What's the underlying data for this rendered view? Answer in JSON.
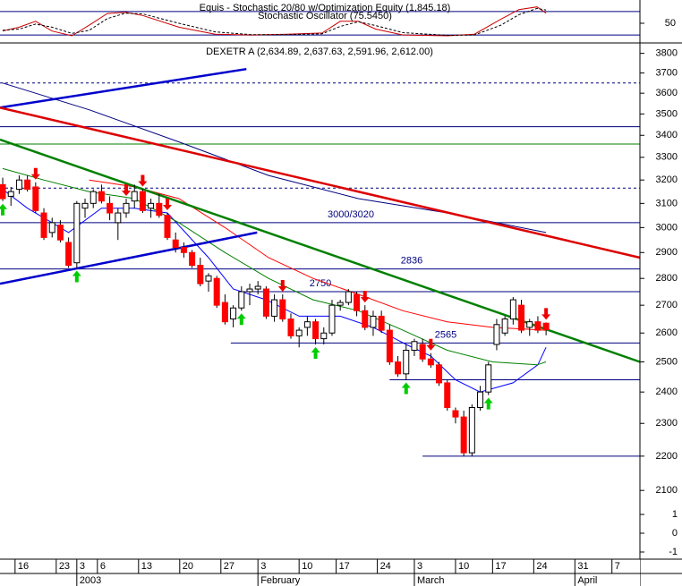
{
  "chart_data": [
    {
      "type": "line",
      "title": "Equis - Stochastic 20/80 w/Optimization Equity (1,845.18)",
      "subtitle": "Stochastic Oscillator (75.5450)",
      "xlim": [
        -0.33,
        77.4
      ],
      "ylim": [
        -5,
        105
      ],
      "yticks": [
        50
      ],
      "levels": [
        80,
        20
      ],
      "series": [
        {
          "color": "#cc0000",
          "x": [
            0,
            2,
            4,
            6,
            8.4,
            10.5,
            12.7,
            14.9,
            17,
            21.4,
            25.8,
            30.1,
            34.5,
            38.8,
            41,
            43.2,
            45.3,
            48.6,
            54,
            57.3,
            60.5,
            62.7,
            64.9,
            66
          ],
          "values": [
            30,
            40,
            55,
            30,
            18,
            45,
            75,
            78,
            70,
            40,
            22,
            20,
            22,
            25,
            55,
            55,
            35,
            20,
            18,
            22,
            60,
            85,
            92,
            76
          ]
        },
        {
          "color": "#000000",
          "dashed": true,
          "x": [
            0,
            2,
            4,
            6,
            8.4,
            10.5,
            12.7,
            14.9,
            17,
            21.4,
            25.8,
            30.1,
            34.5,
            38.8,
            41,
            43.2,
            45.3,
            48.6,
            54,
            57.3,
            60.5,
            62.7,
            64.9,
            66
          ],
          "values": [
            32,
            35,
            48,
            40,
            24,
            32,
            62,
            76,
            74,
            50,
            28,
            21,
            21,
            23,
            42,
            54,
            44,
            26,
            19,
            20,
            45,
            72,
            88,
            84
          ]
        }
      ]
    },
    {
      "type": "candlestick",
      "title": "DEXETR A (2,634.89, 2,637.63, 2,591.96, 2,612.00)",
      "log_scale": true,
      "xlim": [
        -0.33,
        77.4
      ],
      "ylim": [
        1913,
        3840
      ],
      "yticks": [
        2100,
        2200,
        2300,
        2400,
        2500,
        2600,
        2700,
        2800,
        2900,
        3000,
        3100,
        3200,
        3300,
        3400,
        3500,
        3600,
        3700,
        3800
      ],
      "extra_tick_labels": [
        "1",
        "0",
        "-1"
      ],
      "xticks": [
        {
          "value": 1.5,
          "label": "16"
        },
        {
          "value": 6.5,
          "label": "23"
        },
        {
          "value": 9,
          "label": "3"
        },
        {
          "value": 11.5,
          "label": "6"
        },
        {
          "value": 16.5,
          "label": "13"
        },
        {
          "value": 21.5,
          "label": "20"
        },
        {
          "value": 26.5,
          "label": "27"
        },
        {
          "value": 31,
          "label": "3"
        },
        {
          "value": 36,
          "label": "10"
        },
        {
          "value": 40.5,
          "label": "17"
        },
        {
          "value": 45.5,
          "label": "24"
        },
        {
          "value": 50,
          "label": "3"
        },
        {
          "value": 55,
          "label": "10"
        },
        {
          "value": 59.5,
          "label": "17"
        },
        {
          "value": 64.5,
          "label": "24"
        },
        {
          "value": 69.5,
          "label": "31"
        },
        {
          "value": 74,
          "label": "7"
        }
      ],
      "xmajor": [
        {
          "value": 9,
          "label": "2003"
        },
        {
          "value": 31,
          "label": "February"
        },
        {
          "value": 50,
          "label": "March"
        },
        {
          "value": 69.5,
          "label": "April"
        }
      ],
      "up_color": "#ffffff",
      "down_color": "#ff0000",
      "open": [
        3180,
        3130,
        3160,
        3200,
        3170,
        3060,
        2980,
        3010,
        2940,
        2860,
        3080,
        3100,
        3150,
        3100,
        3020,
        3060,
        3110,
        3150,
        3080,
        3100,
        3050,
        2950,
        2920,
        2900,
        2850,
        2790,
        2800,
        2710,
        2650,
        2690,
        2750,
        2760,
        2760,
        2660,
        2720,
        2650,
        2590,
        2620,
        2640,
        2580,
        2600,
        2700,
        2710,
        2740,
        2680,
        2620,
        2660,
        2610,
        2500,
        2460,
        2540,
        2560,
        2510,
        2490,
        2430,
        2340,
        2320,
        2210,
        2350,
        2400,
        2560,
        2600,
        2650,
        2700,
        2620,
        2640,
        2634.89
      ],
      "high": [
        3210,
        3170,
        3220,
        3220,
        3190,
        3080,
        3040,
        3030,
        2960,
        3110,
        3120,
        3160,
        3180,
        3130,
        3080,
        3120,
        3180,
        3160,
        3120,
        3140,
        3060,
        2980,
        2940,
        2910,
        2880,
        2820,
        2810,
        2740,
        2700,
        2770,
        2780,
        2790,
        2770,
        2740,
        2740,
        2670,
        2620,
        2660,
        2650,
        2620,
        2720,
        2720,
        2760,
        2750,
        2700,
        2680,
        2680,
        2630,
        2520,
        2560,
        2580,
        2580,
        2530,
        2500,
        2440,
        2350,
        2340,
        2360,
        2420,
        2500,
        2650,
        2660,
        2730,
        2720,
        2650,
        2660,
        2637.63
      ],
      "low": [
        3110,
        3090,
        3140,
        3150,
        3060,
        2950,
        2960,
        2940,
        2840,
        2840,
        3040,
        3080,
        3100,
        3030,
        2950,
        3040,
        3080,
        3060,
        3040,
        3040,
        2950,
        2900,
        2880,
        2840,
        2770,
        2750,
        2690,
        2630,
        2620,
        2680,
        2700,
        2740,
        2650,
        2640,
        2640,
        2580,
        2550,
        2590,
        2560,
        2560,
        2590,
        2680,
        2700,
        2660,
        2610,
        2590,
        2600,
        2490,
        2450,
        2440,
        2520,
        2500,
        2480,
        2420,
        2340,
        2300,
        2200,
        2200,
        2340,
        2390,
        2540,
        2590,
        2630,
        2600,
        2590,
        2600,
        2591.96
      ],
      "close": [
        3120,
        3150,
        3200,
        3160,
        3070,
        2960,
        3020,
        2950,
        2850,
        3100,
        3100,
        3150,
        3110,
        3060,
        3060,
        3100,
        3150,
        3070,
        3100,
        3050,
        2960,
        2920,
        2900,
        2850,
        2780,
        2810,
        2700,
        2640,
        2690,
        2750,
        2760,
        2770,
        2660,
        2720,
        2650,
        2590,
        2610,
        2640,
        2580,
        2600,
        2700,
        2710,
        2750,
        2680,
        2620,
        2660,
        2610,
        2500,
        2460,
        2540,
        2570,
        2510,
        2490,
        2430,
        2350,
        2320,
        2210,
        2350,
        2400,
        2490,
        2630,
        2650,
        2720,
        2610,
        2640,
        2610,
        2612
      ],
      "buy_signals": [
        0,
        9,
        29,
        38,
        49,
        59
      ],
      "sell_signals": [
        4,
        15,
        17,
        20,
        34,
        44,
        52,
        66
      ],
      "moving_averages": [
        {
          "color": "#0000ff",
          "x": [
            0,
            3,
            8,
            12,
            16,
            20,
            25,
            28,
            32,
            36,
            41,
            45,
            49,
            52,
            55,
            58,
            62,
            65,
            66
          ],
          "values": [
            3160,
            3080,
            2980,
            3080,
            3080,
            3060,
            2880,
            2760,
            2720,
            2660,
            2660,
            2620,
            2560,
            2520,
            2440,
            2400,
            2430,
            2490,
            2550
          ]
        },
        {
          "color": "#008000",
          "x": [
            0,
            5,
            10.5,
            16,
            21.4,
            27,
            32.3,
            37.7,
            43.2,
            48.6,
            54,
            59.5,
            64.9,
            66
          ],
          "values": [
            3250,
            3200,
            3150,
            3120,
            3020,
            2900,
            2800,
            2720,
            2680,
            2610,
            2540,
            2500,
            2490,
            2500
          ]
        },
        {
          "color": "#ff0000",
          "x": [
            10.5,
            16,
            21.4,
            27,
            32.3,
            37.7,
            43.2,
            48.6,
            54,
            59.5,
            66
          ],
          "values": [
            3200,
            3170,
            3120,
            3000,
            2880,
            2800,
            2740,
            2680,
            2640,
            2620,
            2610
          ]
        },
        {
          "color": "#000080",
          "x": [
            0,
            10.5,
            21.4,
            32.3,
            43.2,
            54,
            66
          ],
          "values": [
            3650,
            3520,
            3370,
            3220,
            3120,
            3060,
            2980
          ]
        }
      ],
      "trendlines": [
        {
          "color": "#0000cc",
          "x": [
            -0.33,
            29.6
          ],
          "values": [
            3530,
            3720
          ]
        },
        {
          "color": "#0000cc",
          "x": [
            -0.33,
            30.9
          ],
          "values": [
            2780,
            2980
          ]
        },
        {
          "color": "#dd0000",
          "x": [
            -0.33,
            77.4
          ],
          "values": [
            3530,
            2880
          ]
        },
        {
          "color": "#008000",
          "x": [
            -0.33,
            77.4
          ],
          "values": [
            3380,
            2500
          ]
        }
      ],
      "levels": [
        {
          "value": 3650,
          "color": "#000080",
          "dashed": true
        },
        {
          "value": 3440,
          "color": "#000080"
        },
        {
          "value": 3360,
          "color": "#008000"
        },
        {
          "value": 3165,
          "color": "#000080",
          "dashed": true
        },
        {
          "value": 3020,
          "label": "3000/3020",
          "color": "#000080"
        },
        {
          "value": 2836,
          "label": "2836",
          "color": "#000080"
        },
        {
          "value": 2750,
          "label": "2750",
          "color": "#000080",
          "from": 29
        },
        {
          "value": 2565,
          "label": "2565",
          "color": "#000080",
          "from": 27.7
        },
        {
          "value": 2440,
          "color": "#000080",
          "from": 47
        },
        {
          "value": 2200,
          "color": "#000080",
          "from": 51
        }
      ]
    }
  ]
}
